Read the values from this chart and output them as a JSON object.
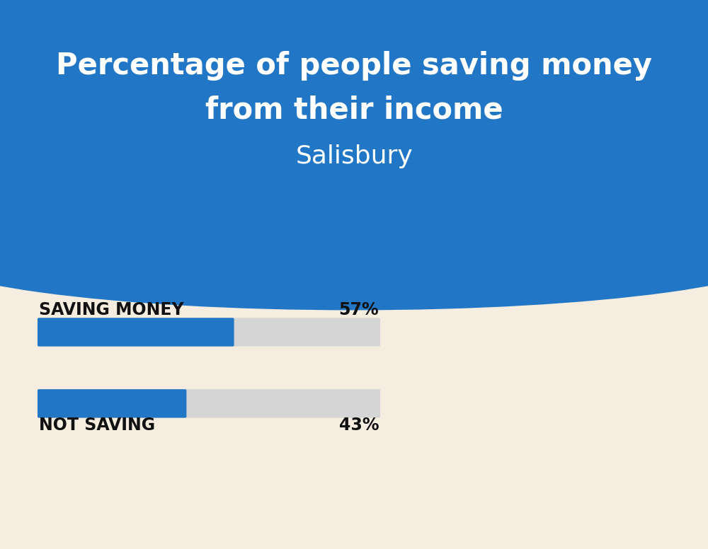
{
  "title_line1": "Percentage of people saving money",
  "title_line2": "from their income",
  "subtitle": "Salisbury",
  "bg_color": "#f5ede0",
  "header_color": "#2177c5",
  "bar_color": "#2177c5",
  "bar_bg_color": "#d5d5d5",
  "categories": [
    "SAVING MONEY",
    "NOT SAVING"
  ],
  "values": [
    57,
    43
  ],
  "label_color": "#111111",
  "title_color": "#ffffff",
  "subtitle_color": "#ffffff",
  "title_fontsize": 30,
  "subtitle_fontsize": 26,
  "label_fontsize": 17,
  "pct_fontsize": 17
}
